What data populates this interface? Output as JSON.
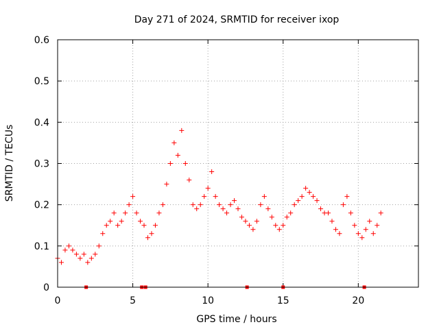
{
  "chart_data": {
    "type": "scatter",
    "title": "Day 271 of 2024, SRMTID for receiver ixop",
    "xlabel": "GPS time / hours",
    "ylabel": "SRMTID / TECUs",
    "xlim": [
      0,
      24
    ],
    "ylim": [
      0,
      0.6
    ],
    "xticks": [
      0,
      5,
      10,
      15,
      20
    ],
    "xtick_labels": [
      "0",
      "5",
      "10",
      "15",
      "20"
    ],
    "yticks": [
      0,
      0.1,
      0.2,
      0.3,
      0.4,
      0.5,
      0.6
    ],
    "ytick_labels": [
      "0",
      "0.1",
      "0.2",
      "0.3",
      "0.4",
      "0.5",
      "0.6"
    ],
    "grid": true,
    "marker": "+",
    "color": "#ff0000",
    "series": [
      {
        "name": "SRMTID",
        "x": [
          0.0,
          0.25,
          0.5,
          0.75,
          1.0,
          1.25,
          1.5,
          1.75,
          2.0,
          2.25,
          2.5,
          2.75,
          3.0,
          3.25,
          3.5,
          3.75,
          4.0,
          4.25,
          4.5,
          4.75,
          5.0,
          5.25,
          5.5,
          5.75,
          6.0,
          6.25,
          6.5,
          6.75,
          7.0,
          7.25,
          7.5,
          7.75,
          8.0,
          8.25,
          8.5,
          8.75,
          9.0,
          9.25,
          9.5,
          9.75,
          10.0,
          10.25,
          10.5,
          10.75,
          11.0,
          11.25,
          11.5,
          11.75,
          12.0,
          12.25,
          12.5,
          12.75,
          13.0,
          13.25,
          13.5,
          13.75,
          14.0,
          14.25,
          14.5,
          14.75,
          15.0,
          15.25,
          15.5,
          15.75,
          16.0,
          16.25,
          16.5,
          16.75,
          17.0,
          17.25,
          17.5,
          17.75,
          18.0,
          18.25,
          18.5,
          18.75,
          19.0,
          19.25,
          19.5,
          19.75,
          20.0,
          20.25,
          20.5,
          20.75,
          21.0,
          21.25,
          21.5
        ],
        "y": [
          0.07,
          0.06,
          0.09,
          0.1,
          0.09,
          0.08,
          0.07,
          0.08,
          0.06,
          0.07,
          0.08,
          0.1,
          0.13,
          0.15,
          0.16,
          0.18,
          0.15,
          0.16,
          0.18,
          0.2,
          0.22,
          0.18,
          0.16,
          0.15,
          0.12,
          0.13,
          0.15,
          0.18,
          0.2,
          0.25,
          0.3,
          0.35,
          0.32,
          0.38,
          0.3,
          0.26,
          0.2,
          0.19,
          0.2,
          0.22,
          0.24,
          0.28,
          0.22,
          0.2,
          0.19,
          0.18,
          0.2,
          0.21,
          0.19,
          0.17,
          0.16,
          0.15,
          0.14,
          0.16,
          0.2,
          0.22,
          0.19,
          0.17,
          0.15,
          0.14,
          0.15,
          0.17,
          0.18,
          0.2,
          0.21,
          0.22,
          0.24,
          0.23,
          0.22,
          0.21,
          0.19,
          0.18,
          0.18,
          0.16,
          0.14,
          0.13,
          0.2,
          0.22,
          0.18,
          0.15,
          0.13,
          0.12,
          0.14,
          0.16,
          0.13,
          0.15,
          0.18
        ]
      }
    ],
    "zero_markers_x": [
      1.9,
      5.6,
      5.85,
      12.6,
      15.0,
      20.4
    ]
  }
}
